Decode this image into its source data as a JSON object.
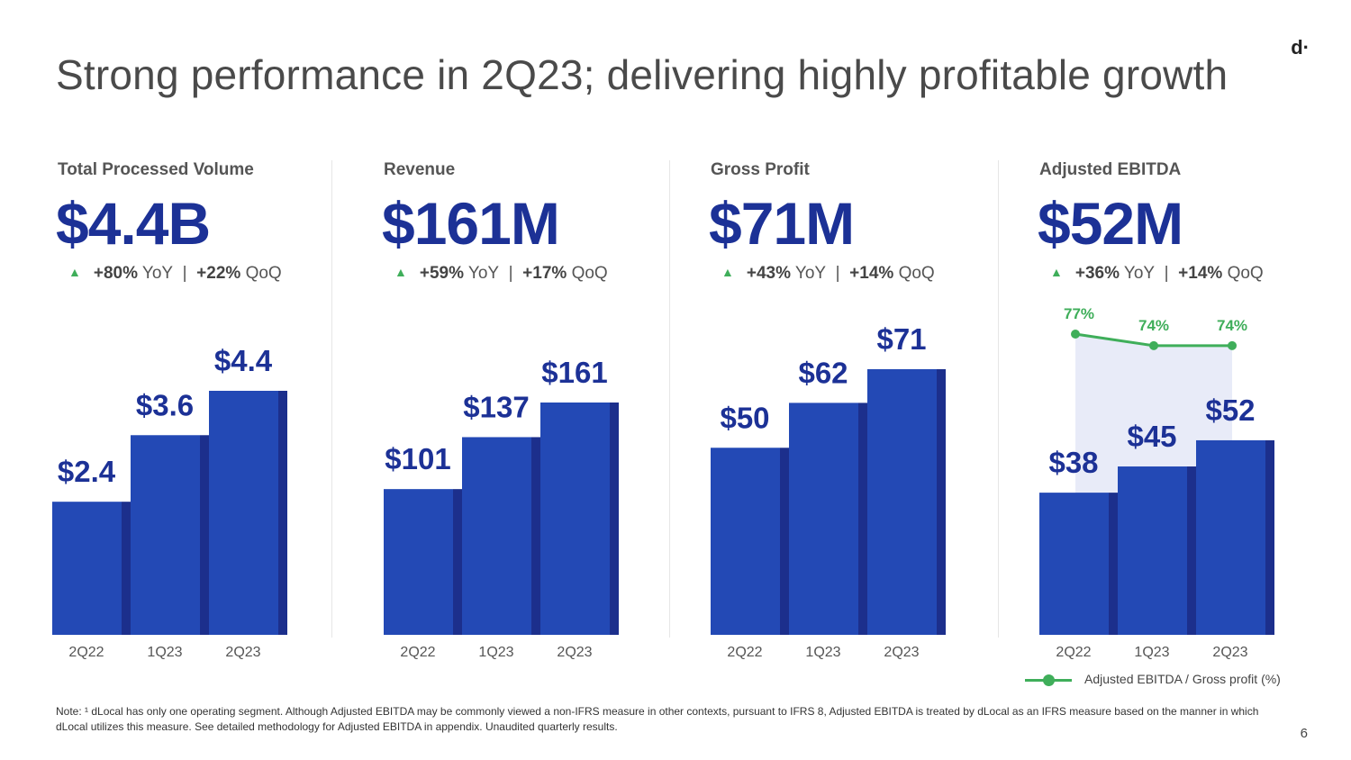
{
  "title": "Strong performance in 2Q23; delivering highly profitable growth",
  "logo": "d·",
  "page_number": "6",
  "colors": {
    "bar": "#2349b5",
    "bar_edge": "#1c2f8c",
    "label": "#1c3196",
    "accent_green": "#3fae5a",
    "shade": "#e8ebf8"
  },
  "metrics": [
    {
      "label": "Total Processed Volume",
      "headline": "$4.4B",
      "yoy": "+80%",
      "yoy_text": "YoY",
      "sep": "|",
      "qoq": "+22%",
      "qoq_text": "QoQ",
      "growth_icon": "up-triangle-icon"
    },
    {
      "label": "Revenue",
      "headline": "$161M",
      "yoy": "+59%",
      "yoy_text": "YoY",
      "sep": "|",
      "qoq": "+17%",
      "qoq_text": "QoQ",
      "growth_icon": "up-triangle-icon"
    },
    {
      "label": "Gross Profit",
      "headline": "$71M",
      "yoy": "+43%",
      "yoy_text": "YoY",
      "sep": "|",
      "qoq": "+14%",
      "qoq_text": "QoQ",
      "growth_icon": "up-triangle-icon"
    },
    {
      "label": "Adjusted EBITDA",
      "headline": "$52M",
      "yoy": "+36%",
      "yoy_text": "YoY",
      "sep": "|",
      "qoq": "+14%",
      "qoq_text": "QoQ",
      "growth_icon": "up-triangle-icon"
    }
  ],
  "chart_data": [
    {
      "type": "bar",
      "title": "Total Processed Volume",
      "categories": [
        "2Q22",
        "1Q23",
        "2Q23"
      ],
      "values": [
        2.4,
        3.6,
        4.4
      ],
      "value_labels": [
        "$2.4",
        "$3.6",
        "$4.4"
      ],
      "ylim": [
        0,
        4.4
      ]
    },
    {
      "type": "bar",
      "title": "Revenue",
      "categories": [
        "2Q22",
        "1Q23",
        "2Q23"
      ],
      "values": [
        101,
        137,
        161
      ],
      "value_labels": [
        "$101",
        "$137",
        "$161"
      ],
      "ylim": [
        0,
        161
      ]
    },
    {
      "type": "bar",
      "title": "Gross Profit",
      "categories": [
        "2Q22",
        "1Q23",
        "2Q23"
      ],
      "values": [
        50,
        62,
        71
      ],
      "value_labels": [
        "$50",
        "$62",
        "$71"
      ],
      "ylim": [
        0,
        71
      ]
    },
    {
      "type": "bar",
      "title": "Adjusted EBITDA",
      "categories": [
        "2Q22",
        "1Q23",
        "2Q23"
      ],
      "values": [
        38,
        45,
        52
      ],
      "value_labels": [
        "$38",
        "$45",
        "$52"
      ],
      "ylim": [
        0,
        71
      ],
      "line_series": {
        "name": "Adjusted EBITDA / Gross profit (%)",
        "values": [
          77,
          74,
          74
        ],
        "value_labels": [
          "77%",
          "74%",
          "74%"
        ]
      }
    }
  ],
  "legend_label": "Adjusted EBITDA / Gross profit (%)",
  "note": "Note: ¹ dLocal has only one operating segment. Although Adjusted EBITDA may be commonly viewed a non-IFRS measure in other contexts, pursuant to IFRS 8, Adjusted EBITDA is treated by dLocal as an IFRS measure based on the manner in which dLocal utilizes this measure. See detailed methodology for Adjusted EBITDA in appendix. Unaudited quarterly results."
}
